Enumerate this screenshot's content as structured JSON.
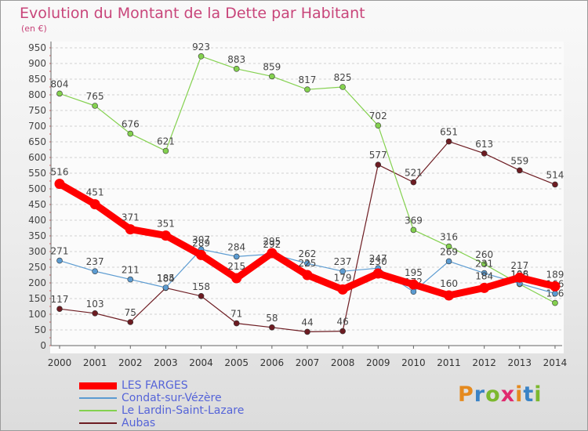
{
  "header": {
    "title": "Evolution du Montant de la Dette par Habitant",
    "unit": "(en €)"
  },
  "logo": {
    "text": "Proxiti",
    "letter_colors": [
      "#e58a1f",
      "#3a83c6",
      "#7cb82f",
      "#e02a6e",
      "#e58a1f",
      "#3a83c6",
      "#7cb82f"
    ]
  },
  "chart_data": {
    "type": "line",
    "title": "Evolution du Montant de la Dette par Habitant",
    "ylabel": "(en €)",
    "xlabel": "",
    "x": [
      "2000",
      "2001",
      "2002",
      "2003",
      "2004",
      "2005",
      "2006",
      "2007",
      "2008",
      "2009",
      "2010",
      "2011",
      "2012",
      "2013",
      "2014"
    ],
    "ylim": [
      0,
      950
    ],
    "yticks": [
      0,
      50,
      100,
      150,
      200,
      250,
      300,
      350,
      400,
      450,
      500,
      550,
      600,
      650,
      700,
      750,
      800,
      850,
      900,
      950
    ],
    "grid": "horizontal dashed",
    "legend": "bottom-left",
    "series": [
      {
        "name": "Aubas",
        "color": "#6d1c22",
        "values": [
          117,
          103,
          75,
          184,
          158,
          71,
          58,
          44,
          46,
          577,
          521,
          651,
          613,
          559,
          514
        ]
      },
      {
        "name": "Le Lardin-Saint-Lazare",
        "color": "#84d14f",
        "values": [
          804,
          765,
          676,
          621,
          923,
          883,
          859,
          817,
          825,
          702,
          369,
          316,
          260,
          196,
          136
        ]
      },
      {
        "name": "Condat-sur-Vézère",
        "color": "#5b9bd1",
        "values": [
          271,
          237,
          211,
          185,
          307,
          284,
          292,
          262,
          237,
          247,
          172,
          269,
          231,
          198,
          166
        ]
      },
      {
        "name": "LES FARGES",
        "color": "#ff0000",
        "values": [
          516,
          451,
          371,
          351,
          289,
          215,
          295,
          225,
          179,
          230,
          195,
          160,
          184,
          217,
          189
        ]
      }
    ],
    "legend_order": [
      "LES FARGES",
      "Condat-sur-Vézère",
      "Le Lardin-Saint-Lazare",
      "Aubas"
    ]
  }
}
